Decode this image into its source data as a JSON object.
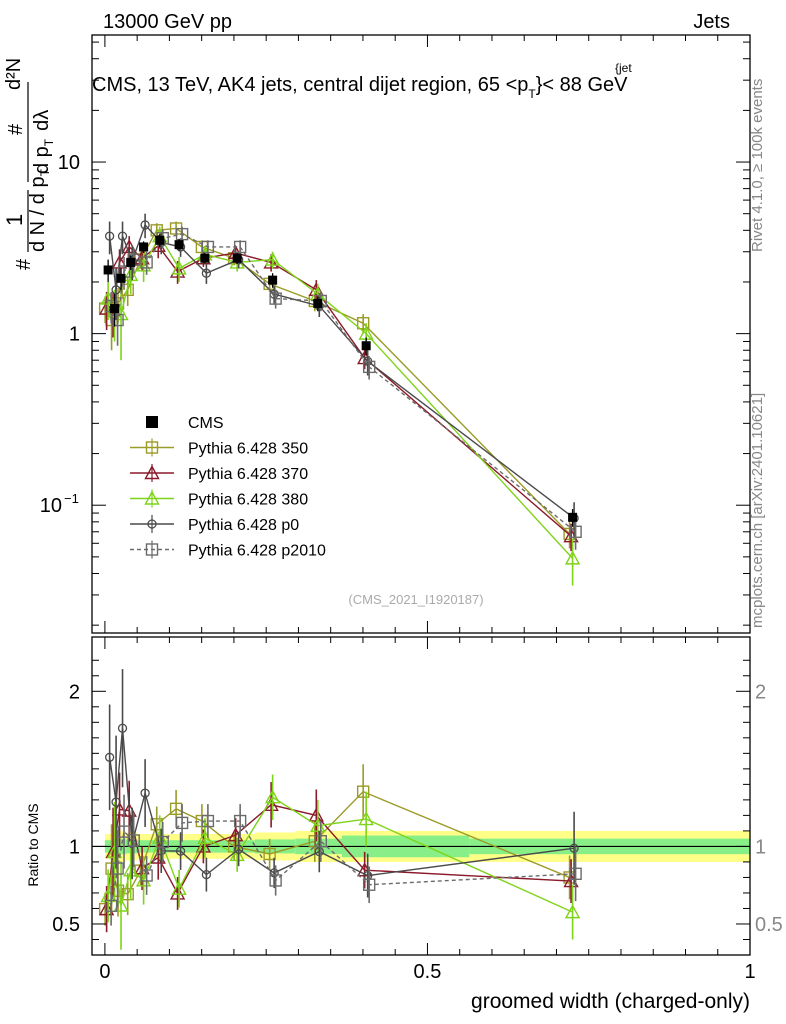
{
  "header": {
    "left": "13000 GeV pp",
    "right": "Jets",
    "side_top": "Rivet 4.1.0, ≥ 100k events",
    "side_bottom": "mcplots.cern.ch [arXiv:2401.10621]"
  },
  "chart_data": {
    "type": "line",
    "title": "CMS, 13 TeV, AK4 jets, central dijet region, 65 <p",
    "title_sub": "T",
    "title_sup": "{jet",
    "title_end": "}< 88 GeV",
    "watermark": "(CMS_2021_I1920187)",
    "xlabel": "groomed width (charged-only)",
    "ylabel_top": "d N / d p",
    "ylabel_top_sub": "T",
    "ylabel_bottom": "d p",
    "ylabel_bottom_sub": "T",
    "ylabel_bottom_end": "dλ",
    "ylabel_num": "d²N",
    "ylabel_hash": "#",
    "ylabel_one": "1",
    "ratio_ylabel": "Ratio to CMS",
    "xlim": [
      -0.02,
      1.0
    ],
    "ylim_main": [
      0.018,
      55
    ],
    "ylim_ratio": [
      0.3,
      2.35
    ],
    "yscale_main": "log",
    "x_ticks": [
      0,
      0.5,
      1
    ],
    "x_tick_labels": [
      "0",
      "0.5",
      "1"
    ],
    "main_y_ticks": [
      0.1,
      1,
      10
    ],
    "main_y_tick_labels": [
      "10",
      "1",
      "10"
    ],
    "main_y_tick_exp": [
      "−1",
      "",
      ""
    ],
    "ratio_y_ticks": [
      0.5,
      1,
      2
    ],
    "ratio_y_tick_labels": [
      "0.5",
      "1",
      "2"
    ],
    "legend_position": "mid-left",
    "legend": [
      "CMS",
      "Pythia 6.428 350",
      "Pythia 6.428 370",
      "Pythia 6.428 380",
      "Pythia 6.428 p0",
      "Pythia 6.428 p2010"
    ],
    "data": {
      "name": "CMS",
      "x": [
        0.005,
        0.015,
        0.025,
        0.04,
        0.06,
        0.085,
        0.115,
        0.155,
        0.205,
        0.26,
        0.33,
        0.405,
        0.725
      ],
      "y": [
        2.35,
        1.4,
        2.1,
        2.6,
        3.2,
        3.5,
        3.3,
        2.75,
        2.75,
        2.05,
        1.5,
        0.85,
        0.085
      ],
      "err": [
        0.35,
        0.3,
        0.3,
        0.25,
        0.25,
        0.3,
        0.25,
        0.2,
        0.2,
        0.2,
        0.15,
        0.1,
        0.01
      ]
    },
    "band_inner": [
      0.04,
      0.05,
      0.05,
      0.045,
      0.04,
      0.04,
      0.04,
      0.04,
      0.04,
      0.045,
      0.05,
      0.07,
      0.05
    ],
    "band_outer": [
      0.08,
      0.1,
      0.1,
      0.09,
      0.08,
      0.08,
      0.08,
      0.08,
      0.08,
      0.09,
      0.1,
      0.1,
      0.1
    ],
    "series": [
      {
        "name": "Pythia 6.428 350",
        "color": "#9b9b27",
        "marker": "square",
        "dashed": false,
        "x": [
          0.005,
          0.015,
          0.025,
          0.04,
          0.06,
          0.085,
          0.115,
          0.155,
          0.205,
          0.26,
          0.33,
          0.405,
          0.725
        ],
        "y": [
          1.4,
          1.2,
          1.5,
          1.8,
          2.7,
          4.0,
          4.1,
          3.2,
          2.75,
          1.95,
          1.55,
          1.15,
          0.068
        ],
        "err": [
          0.25,
          0.4,
          0.35,
          0.35,
          0.3,
          0.4,
          0.4,
          0.3,
          0.25,
          0.2,
          0.2,
          0.15,
          0.012
        ]
      },
      {
        "name": "Pythia 6.428 370",
        "color": "#8b1a2a",
        "marker": "triangle",
        "dashed": false,
        "x": [
          0.005,
          0.015,
          0.025,
          0.04,
          0.06,
          0.085,
          0.115,
          0.155,
          0.205,
          0.26,
          0.33,
          0.405,
          0.725
        ],
        "y": [
          1.4,
          1.35,
          2.6,
          3.2,
          2.75,
          3.25,
          2.3,
          2.75,
          2.95,
          2.6,
          1.8,
          0.72,
          0.066
        ],
        "err": [
          0.35,
          0.4,
          0.5,
          0.5,
          0.45,
          0.5,
          0.35,
          0.3,
          0.3,
          0.3,
          0.25,
          0.1,
          0.012
        ]
      },
      {
        "name": "Pythia 6.428 380",
        "color": "#7fd31a",
        "marker": "triangle",
        "dashed": false,
        "x": [
          0.005,
          0.015,
          0.025,
          0.04,
          0.06,
          0.085,
          0.115,
          0.155,
          0.205,
          0.26,
          0.33,
          0.405,
          0.725
        ],
        "y": [
          1.6,
          1.35,
          1.3,
          2.2,
          2.5,
          3.7,
          2.4,
          2.9,
          2.6,
          2.7,
          1.7,
          1.0,
          0.049
        ],
        "err": [
          0.4,
          0.45,
          0.6,
          0.5,
          0.5,
          0.5,
          0.4,
          0.35,
          0.3,
          0.3,
          0.25,
          0.15,
          0.015
        ]
      },
      {
        "name": "Pythia 6.428 p0",
        "color": "#4a4a4a",
        "marker": "circle",
        "dashed": false,
        "x": [
          0.005,
          0.015,
          0.025,
          0.04,
          0.06,
          0.085,
          0.115,
          0.155,
          0.205,
          0.26,
          0.33,
          0.405,
          0.725
        ],
        "y": [
          3.7,
          1.8,
          3.7,
          2.65,
          4.3,
          3.4,
          3.2,
          2.25,
          2.7,
          1.7,
          1.45,
          0.69,
          0.084
        ],
        "err": [
          0.8,
          0.6,
          0.8,
          0.6,
          0.7,
          0.5,
          0.4,
          0.3,
          0.3,
          0.2,
          0.2,
          0.12,
          0.02
        ]
      },
      {
        "name": "Pythia 6.428 p2010",
        "color": "#6b6b6b",
        "marker": "square",
        "dashed": true,
        "x": [
          0.005,
          0.015,
          0.025,
          0.04,
          0.06,
          0.085,
          0.115,
          0.155,
          0.205,
          0.26,
          0.33,
          0.405,
          0.725
        ],
        "y": [
          1.45,
          1.2,
          2.3,
          2.7,
          2.6,
          3.6,
          3.8,
          3.2,
          3.2,
          1.6,
          1.55,
          0.64,
          0.07
        ],
        "err": [
          0.3,
          0.35,
          0.5,
          0.45,
          0.4,
          0.45,
          0.4,
          0.3,
          0.3,
          0.2,
          0.2,
          0.1,
          0.015
        ]
      }
    ]
  }
}
